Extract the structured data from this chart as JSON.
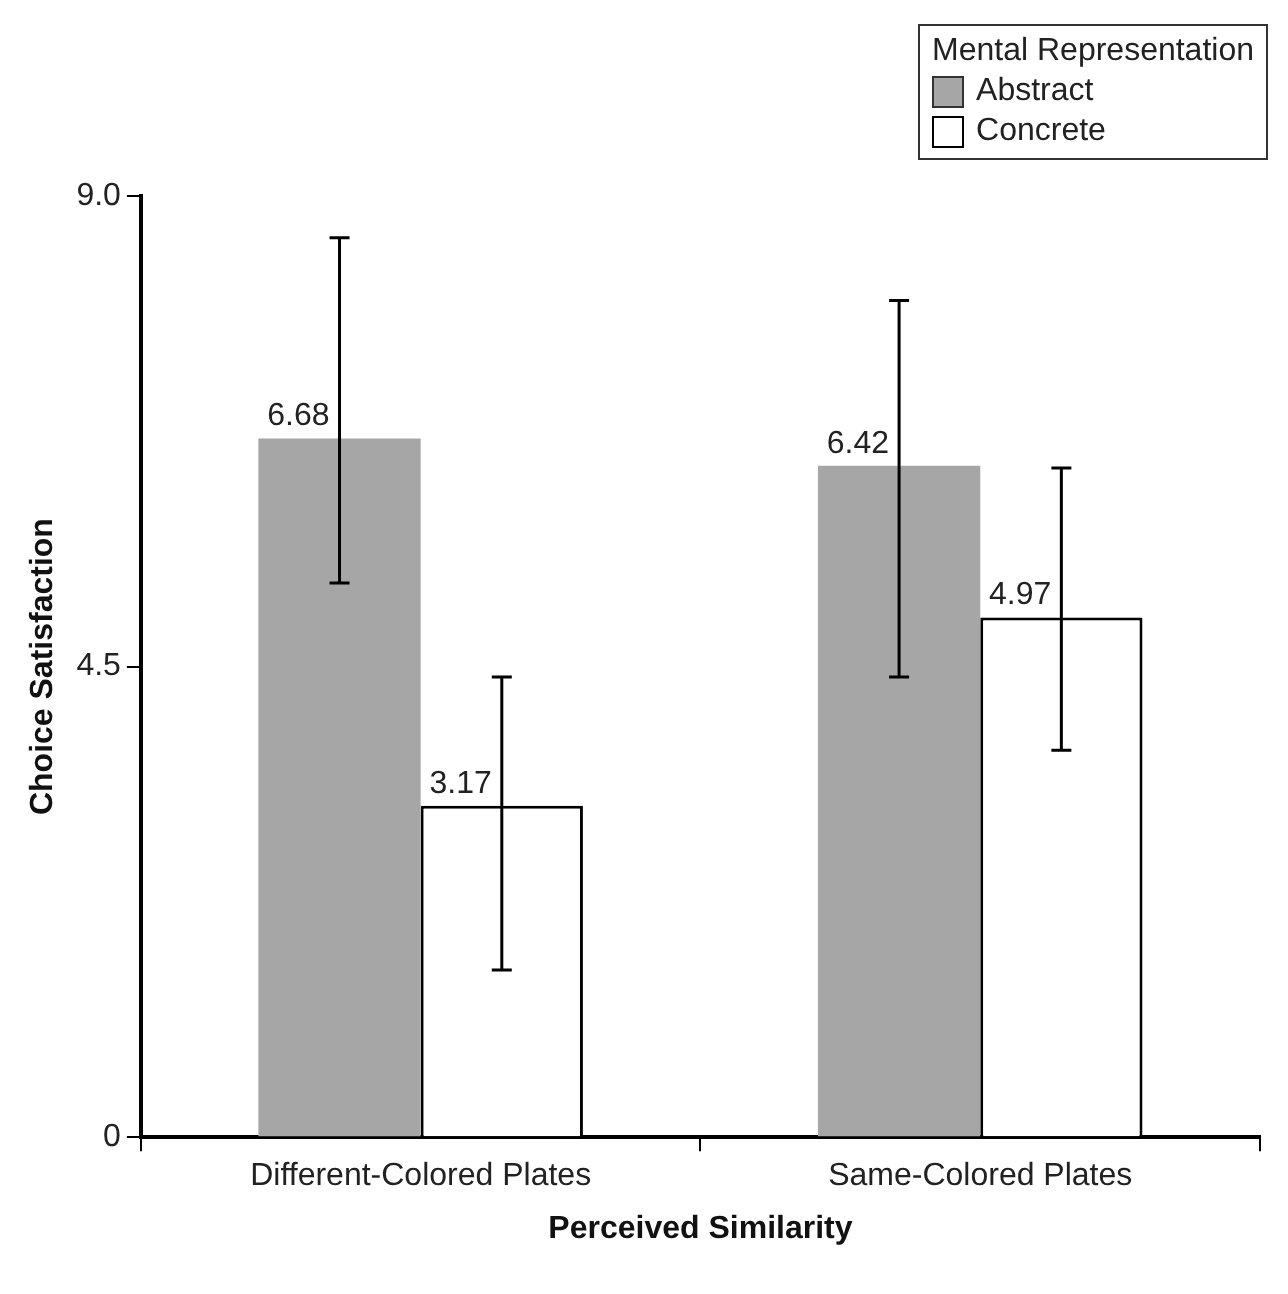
{
  "chart_data": {
    "type": "bar",
    "xlabel": "Perceived Similarity",
    "ylabel": "Choice Satisfaction",
    "legend_title": "Mental Representation",
    "categories": [
      "Different-Colored Plates",
      "Same-Colored Plates"
    ],
    "series": [
      {
        "name": "Abstract",
        "color": "#a6a6a6",
        "values": [
          6.68,
          6.42
        ],
        "errors": [
          [
            5.3,
            8.6
          ],
          [
            4.4,
            8.0
          ]
        ]
      },
      {
        "name": "Concrete",
        "color": "#ffffff",
        "values": [
          3.17,
          4.97
        ],
        "errors": [
          [
            1.6,
            4.4
          ],
          [
            3.7,
            6.4
          ]
        ]
      }
    ],
    "ylim": [
      0,
      9
    ],
    "yticks": [
      0,
      {
        "value": 4.5,
        "label": "4.5"
      },
      {
        "value": 9,
        "label": "9.0"
      }
    ],
    "grid": false,
    "legend": "top right",
    "data_labels": true
  }
}
